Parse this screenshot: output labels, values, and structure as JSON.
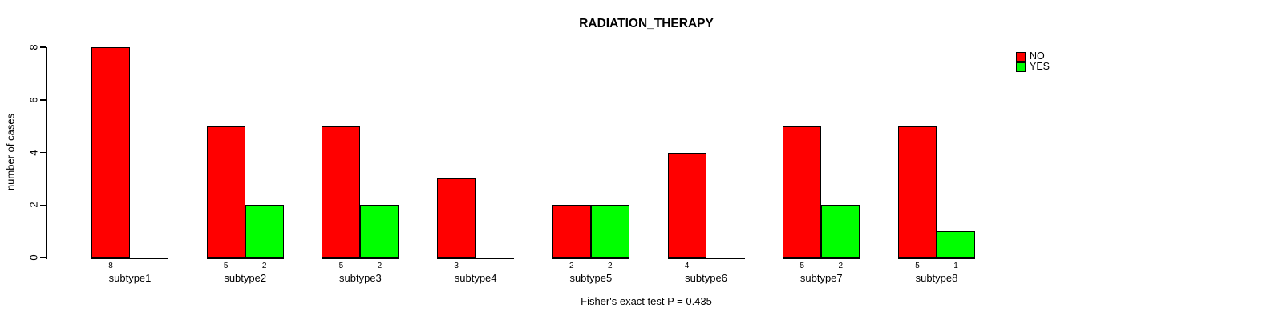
{
  "title": "RADIATION_THERAPY",
  "footer": "Fisher's exact test P = 0.435",
  "chart_data": {
    "type": "bar",
    "title": "RADIATION_THERAPY",
    "categories": [
      "subtype1",
      "subtype2",
      "subtype3",
      "subtype4",
      "subtype5",
      "subtype6",
      "subtype7",
      "subtype8"
    ],
    "series": [
      {
        "name": "NO",
        "color": "#ff0000",
        "values": [
          8,
          5,
          5,
          3,
          2,
          4,
          5,
          5
        ]
      },
      {
        "name": "YES",
        "color": "#00ff00",
        "values": [
          0,
          2,
          2,
          0,
          2,
          0,
          2,
          1
        ]
      }
    ],
    "ylabel": "number of cases",
    "xlabel": "",
    "ylim": [
      0,
      8
    ],
    "yticks": [
      0,
      2,
      4,
      6,
      8
    ],
    "grid": false,
    "legend_position": "top-right",
    "bar_value_labels": "count shown below each nonzero bar",
    "annotation": "Fisher's exact test P = 0.435"
  },
  "legend": {
    "items": [
      {
        "label": "NO",
        "color": "#ff0000"
      },
      {
        "label": "YES",
        "color": "#00ff00"
      }
    ]
  },
  "colors": {
    "background": "#ffffff",
    "text": "#000000",
    "bar_border": "#000000",
    "no": "#ff0000",
    "yes": "#00ff00"
  }
}
